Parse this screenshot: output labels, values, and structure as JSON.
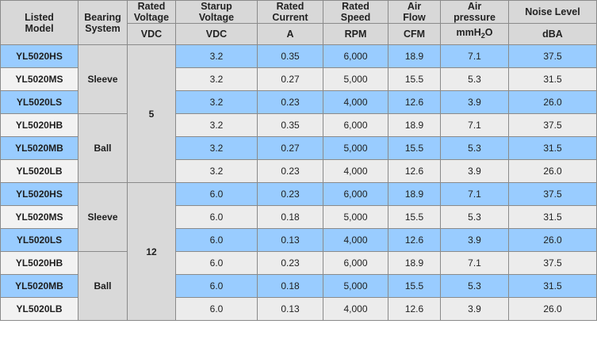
{
  "header": {
    "listed_model": [
      "Listed",
      "Model"
    ],
    "bearing_system": [
      "Bearing",
      "System"
    ],
    "rated_voltage": [
      "Rated",
      "Voltage"
    ],
    "startup_voltage": [
      "Starup",
      "Voltage"
    ],
    "rated_current": [
      "Rated",
      "Current"
    ],
    "rated_speed": [
      "Rated",
      "Speed"
    ],
    "air_flow": [
      "Air",
      "Flow"
    ],
    "air_pressure": [
      "Air",
      "pressure"
    ],
    "noise_level": "Noise Level"
  },
  "units": {
    "rated_voltage": "VDC",
    "startup_voltage": "VDC",
    "rated_current": "A",
    "rated_speed": "RPM",
    "air_flow": "CFM",
    "air_pressure_main": "mmH",
    "air_pressure_sub": "2",
    "air_pressure_tail": "O",
    "noise_level": "dBA"
  },
  "groups": {
    "voltage_5": "5",
    "voltage_12": "12",
    "sleeve_a": "Sleeve",
    "ball_a": "Ball",
    "sleeve_b": "Sleeve",
    "ball_b": "Ball"
  },
  "rows": [
    {
      "model": "YL5020HS",
      "startup": "3.2",
      "current": "0.35",
      "speed": "6,000",
      "flow": "18.9",
      "pressure": "7.1",
      "noise": "37.5"
    },
    {
      "model": "YL5020MS",
      "startup": "3.2",
      "current": "0.27",
      "speed": "5,000",
      "flow": "15.5",
      "pressure": "5.3",
      "noise": "31.5"
    },
    {
      "model": "YL5020LS",
      "startup": "3.2",
      "current": "0.23",
      "speed": "4,000",
      "flow": "12.6",
      "pressure": "3.9",
      "noise": "26.0"
    },
    {
      "model": "YL5020HB",
      "startup": "3.2",
      "current": "0.35",
      "speed": "6,000",
      "flow": "18.9",
      "pressure": "7.1",
      "noise": "37.5"
    },
    {
      "model": "YL5020MB",
      "startup": "3.2",
      "current": "0.27",
      "speed": "5,000",
      "flow": "15.5",
      "pressure": "5.3",
      "noise": "31.5"
    },
    {
      "model": "YL5020LB",
      "startup": "3.2",
      "current": "0.23",
      "speed": "4,000",
      "flow": "12.6",
      "pressure": "3.9",
      "noise": "26.0"
    },
    {
      "model": "YL5020HS",
      "startup": "6.0",
      "current": "0.23",
      "speed": "6,000",
      "flow": "18.9",
      "pressure": "7.1",
      "noise": "37.5"
    },
    {
      "model": "YL5020MS",
      "startup": "6.0",
      "current": "0.18",
      "speed": "5,000",
      "flow": "15.5",
      "pressure": "5.3",
      "noise": "31.5"
    },
    {
      "model": "YL5020LS",
      "startup": "6.0",
      "current": "0.13",
      "speed": "4,000",
      "flow": "12.6",
      "pressure": "3.9",
      "noise": "26.0"
    },
    {
      "model": "YL5020HB",
      "startup": "6.0",
      "current": "0.23",
      "speed": "6,000",
      "flow": "18.9",
      "pressure": "7.1",
      "noise": "37.5"
    },
    {
      "model": "YL5020MB",
      "startup": "6.0",
      "current": "0.18",
      "speed": "5,000",
      "flow": "15.5",
      "pressure": "5.3",
      "noise": "31.5"
    },
    {
      "model": "YL5020LB",
      "startup": "6.0",
      "current": "0.13",
      "speed": "4,000",
      "flow": "12.6",
      "pressure": "3.9",
      "noise": "26.0"
    }
  ],
  "colors": {
    "row_highlight": "#99ccff",
    "row_plain": "#ececec",
    "header_bg": "#d8d8d8",
    "border": "#8a8a8a"
  }
}
